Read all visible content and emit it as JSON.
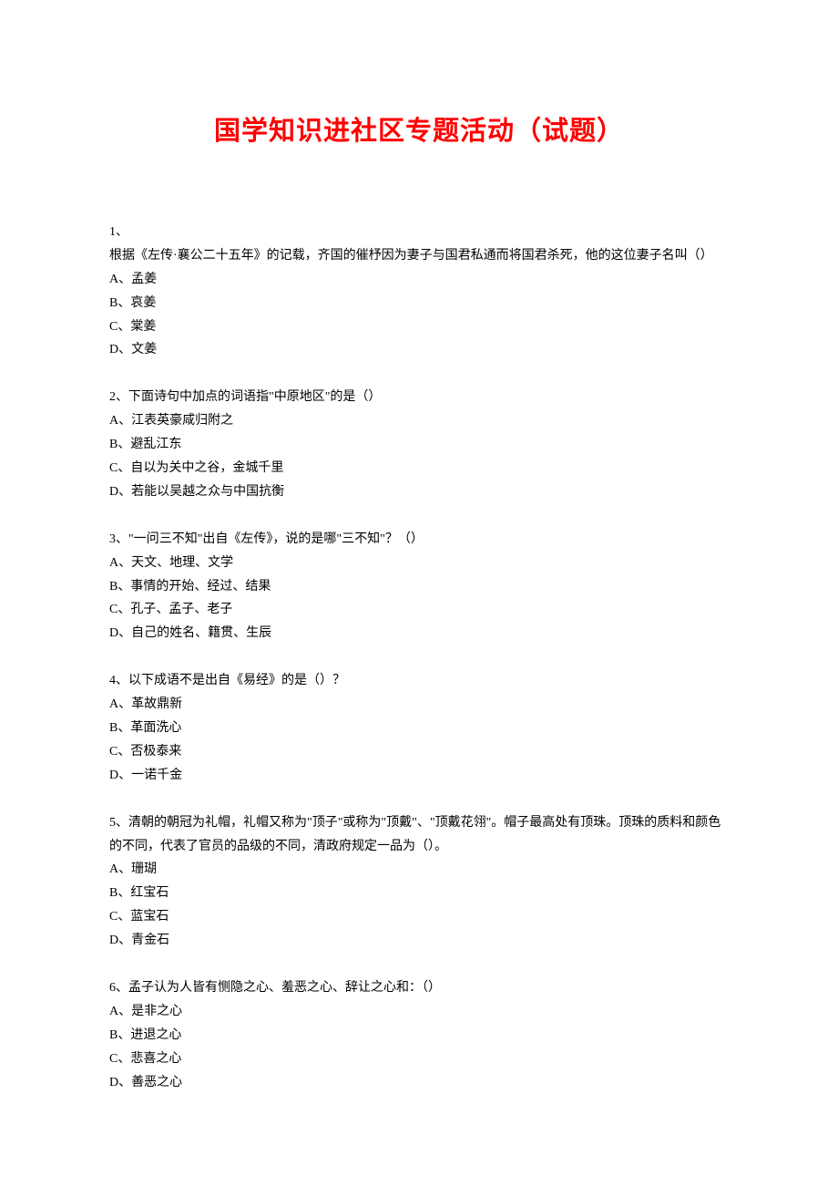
{
  "title": "国学知识进社区专题活动（试题）",
  "questions": [
    {
      "number": "1",
      "text": "根据《左传·襄公二十五年》的记载，齐国的催杼因为妻子与国君私通而将国君杀死，他的这位妻子名叫（）",
      "options": [
        {
          "label": "A",
          "text": "孟姜"
        },
        {
          "label": "B",
          "text": "哀姜"
        },
        {
          "label": "C",
          "text": "棠姜"
        },
        {
          "label": "D",
          "text": "文姜"
        }
      ]
    },
    {
      "number": "2",
      "text": "下面诗句中加点的词语指\"中原地区\"的是（）",
      "options": [
        {
          "label": "A",
          "text": "江表英豪咸归附之"
        },
        {
          "label": "B",
          "text": "避乱江东"
        },
        {
          "label": "C",
          "text": "自以为关中之谷，金城千里"
        },
        {
          "label": "D",
          "text": "若能以吴越之众与中国抗衡"
        }
      ]
    },
    {
      "number": "3",
      "text": "\"一问三不知\"出自《左传》，说的是哪\"三不知\"？（）",
      "options": [
        {
          "label": "A",
          "text": "天文、地理、文学"
        },
        {
          "label": "B",
          "text": "事情的开始、经过、结果"
        },
        {
          "label": "C",
          "text": "孔子、孟子、老子"
        },
        {
          "label": "D",
          "text": "自己的姓名、籍贯、生辰"
        }
      ]
    },
    {
      "number": "4",
      "text": "以下成语不是出自《易经》的是（）？",
      "options": [
        {
          "label": "A",
          "text": "革故鼎新"
        },
        {
          "label": "B",
          "text": "革面洗心"
        },
        {
          "label": "C",
          "text": "否极泰来"
        },
        {
          "label": "D",
          "text": "一诺千金"
        }
      ]
    },
    {
      "number": "5",
      "text": "清朝的朝冠为礼帽，礼帽又称为\"顶子\"或称为\"顶戴\"、\"顶戴花翎\"。帽子最高处有顶珠。顶珠的质料和颜色的不同，代表了官员的品级的不同，清政府规定一品为（）。",
      "options": [
        {
          "label": "A",
          "text": "珊瑚"
        },
        {
          "label": "B",
          "text": "红宝石"
        },
        {
          "label": "C",
          "text": "蓝宝石"
        },
        {
          "label": "D",
          "text": "青金石"
        }
      ]
    },
    {
      "number": "6",
      "text": "孟子认为人皆有恻隐之心、羞恶之心、辞让之心和：（）",
      "options": [
        {
          "label": "A",
          "text": "是非之心"
        },
        {
          "label": "B",
          "text": "进退之心"
        },
        {
          "label": "C",
          "text": "悲喜之心"
        },
        {
          "label": "D",
          "text": "善恶之心"
        }
      ]
    }
  ]
}
